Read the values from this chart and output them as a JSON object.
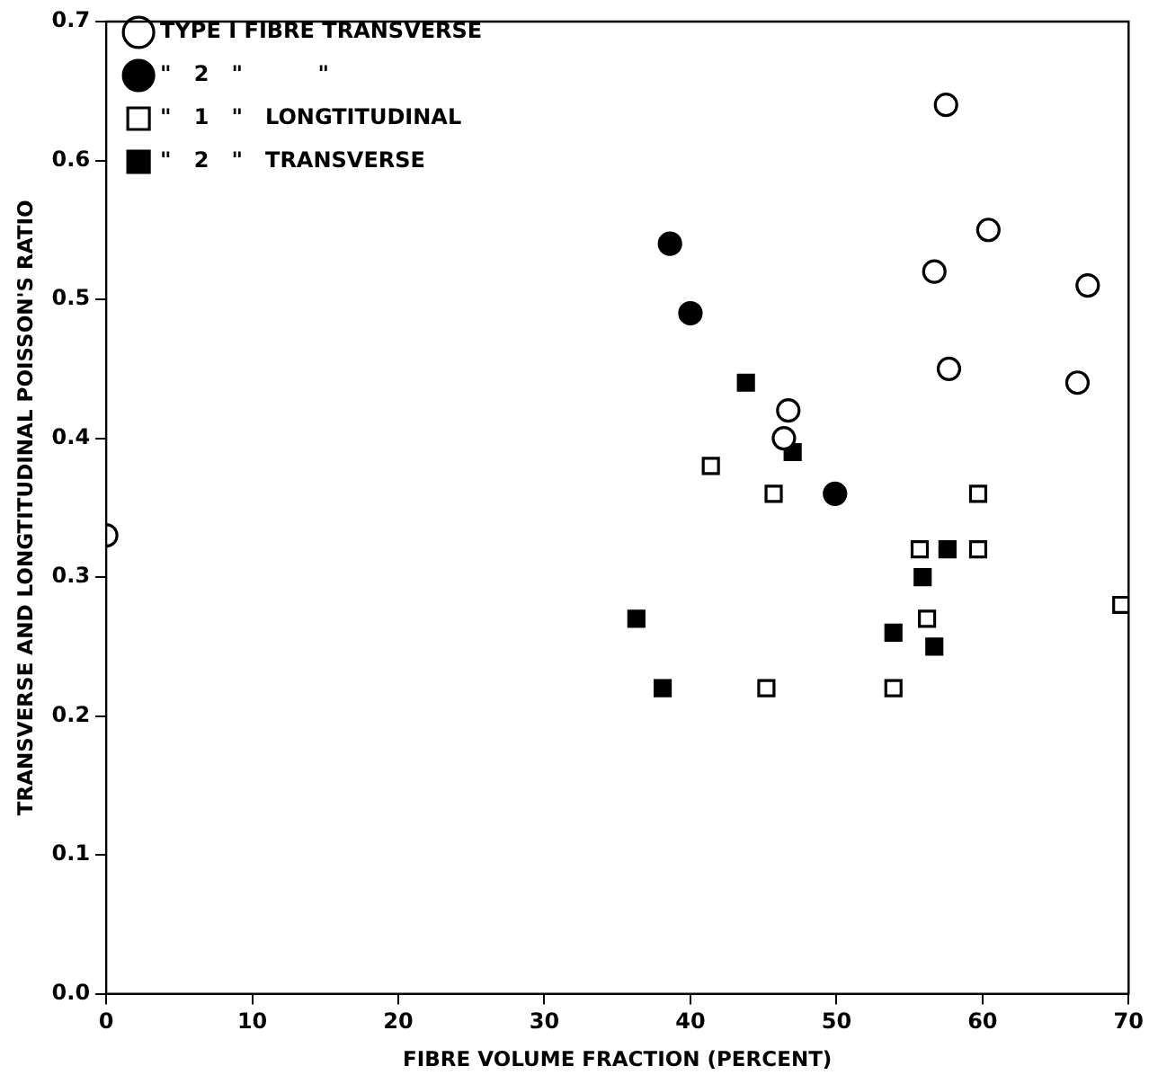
{
  "chart_data": {
    "type": "scatter",
    "xlabel": "FIBRE VOLUME FRACTION (PERCENT)",
    "ylabel": "TRANSVERSE AND LONGTITUDINAL POISSON'S RATIO",
    "xlim": [
      0,
      70
    ],
    "xticks": [
      0,
      10,
      20,
      30,
      40,
      50,
      60,
      70
    ],
    "ylim": [
      0,
      0.7
    ],
    "yticks": [
      {
        "value": 0,
        "label": "0.0"
      },
      0.1,
      0.2,
      0.3,
      0.4,
      0.5,
      0.6,
      0.7
    ],
    "grid": false,
    "legend": "top left",
    "series": [
      {
        "name": "TYPE I FIBRE TRANSVERSE",
        "color": "#ffffff",
        "marker": "circle",
        "x": [
          0,
          57.5,
          60.4,
          56.7,
          67.2,
          57.7,
          66.5,
          46.7,
          46.4
        ],
        "values": [
          0.33,
          0.64,
          0.55,
          0.52,
          0.51,
          0.45,
          0.44,
          0.42,
          0.4
        ]
      },
      {
        "name": "\"   2   \"          \"",
        "color": "#000000",
        "marker": "circle",
        "x": [
          38.6,
          40,
          49.9
        ],
        "values": [
          0.54,
          0.49,
          0.36
        ]
      },
      {
        "name": "\"   1   \"   LONGTITUDINAL",
        "color": "#ffffff",
        "marker": "square",
        "x": [
          41.4,
          45.7,
          59.7,
          55.7,
          59.7,
          56.2,
          69.5,
          45.2,
          53.9
        ],
        "values": [
          0.38,
          0.36,
          0.36,
          0.32,
          0.32,
          0.27,
          0.28,
          0.22,
          0.22
        ]
      },
      {
        "name": "\"   2   \"   TRANSVERSE",
        "color": "#000000",
        "marker": "square",
        "x": [
          43.8,
          47,
          57.6,
          55.9,
          36.3,
          53.9,
          56.7,
          38.1
        ],
        "values": [
          0.44,
          0.39,
          0.32,
          0.3,
          0.27,
          0.26,
          0.25,
          0.22
        ]
      }
    ]
  }
}
